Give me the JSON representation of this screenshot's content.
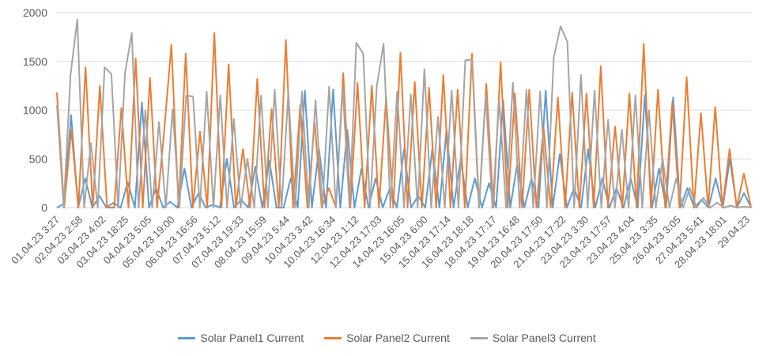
{
  "chart_data": {
    "type": "line",
    "title": "",
    "xlabel": "",
    "ylabel": "",
    "ylim": [
      0,
      2000
    ],
    "yticks": [
      "0",
      "500",
      "1000",
      "1500",
      "2000"
    ],
    "grid": "horizontal",
    "legend_position": "bottom",
    "x_tick_labels": [
      "01.04.23 3:27",
      "02.04.23 2:58",
      "03.04.23 4:02",
      "03.04.23 18:25",
      "04.04.23 5:05",
      "05.04.23 19:00",
      "06.04.23 16:56",
      "07.04.23 5:12",
      "07.04.23 19:33",
      "08.04.23 15:59",
      "09.04.23 5:44",
      "10.04.23 3:42",
      "10.04.23 16:34",
      "12.04.23 1:12",
      "12.04.23 17:03",
      "14.04.23 16:05",
      "15.04.23 6:00",
      "15.04.23 17:14",
      "16.04.23 18:18",
      "18.04.23 17:17",
      "19.04.23 16:48",
      "20.04.23 17:50",
      "21.04.23 17:22",
      "23.04.23 3:30",
      "23.04.23 17:57",
      "23.04.23 4:04",
      "25.04.23 3:35",
      "26.04.23 3:05",
      "27.04.23 5:41",
      "28.04.23 18:01",
      "29.04.23"
    ],
    "series": [
      {
        "name": "Solar Panel1 Current",
        "color": "#5b9bd5",
        "values": [
          0,
          40,
          950,
          0,
          300,
          0,
          120,
          0,
          50,
          0,
          260,
          0,
          1080,
          0,
          200,
          0,
          60,
          0,
          400,
          0,
          150,
          0,
          30,
          0,
          500,
          0,
          80,
          0,
          420,
          0,
          480,
          0,
          0,
          300,
          0,
          1200,
          0,
          600,
          0,
          1210,
          0,
          800,
          0,
          400,
          0,
          300,
          0,
          200,
          0,
          600,
          0,
          120,
          0,
          600,
          0,
          800,
          0,
          500,
          0,
          300,
          0,
          250,
          0,
          1100,
          0,
          450,
          0,
          300,
          0,
          1200,
          0,
          550,
          0,
          200,
          0,
          600,
          0,
          300,
          0,
          200,
          0,
          300,
          0,
          1150,
          0,
          400,
          0,
          1130,
          0,
          200,
          0,
          80,
          0,
          300,
          0,
          500,
          0,
          150,
          0
        ]
      },
      {
        "name": "Solar Panel2 Current",
        "color": "#ed7d31",
        "values": [
          1180,
          0,
          800,
          0,
          1440,
          0,
          1250,
          0,
          0,
          1020,
          0,
          1530,
          0,
          1330,
          0,
          800,
          1670,
          0,
          1580,
          0,
          780,
          0,
          1790,
          0,
          1470,
          0,
          600,
          0,
          1320,
          0,
          1010,
          0,
          1720,
          0,
          1050,
          0,
          870,
          0,
          200,
          0,
          1380,
          0,
          1280,
          0,
          1250,
          0,
          1130,
          0,
          1590,
          0,
          1290,
          0,
          1230,
          0,
          1360,
          0,
          1210,
          0,
          1580,
          0,
          1270,
          0,
          1490,
          0,
          1170,
          0,
          1210,
          0,
          820,
          0,
          1130,
          0,
          1180,
          0,
          1170,
          0,
          1450,
          0,
          830,
          0,
          1170,
          0,
          1680,
          0,
          1210,
          0,
          1080,
          0,
          1340,
          0,
          970,
          0,
          1030,
          0,
          600,
          0,
          350,
          0
        ]
      },
      {
        "name": "Solar Panel3 Current",
        "color": "#a5a5a5",
        "values": [
          1050,
          0,
          1360,
          1930,
          0,
          660,
          0,
          1440,
          1370,
          0,
          1380,
          1790,
          0,
          1000,
          0,
          880,
          0,
          1010,
          0,
          1150,
          1140,
          0,
          1190,
          0,
          1150,
          0,
          910,
          0,
          500,
          0,
          1150,
          0,
          1210,
          0,
          1180,
          0,
          1190,
          0,
          1100,
          0,
          1240,
          0,
          1230,
          0,
          1690,
          1580,
          0,
          1250,
          1680,
          0,
          1190,
          0,
          1160,
          0,
          1420,
          0,
          930,
          0,
          1200,
          0,
          1510,
          1520,
          0,
          1150,
          0,
          1100,
          0,
          1280,
          0,
          1210,
          0,
          1190,
          0,
          1540,
          1860,
          1700,
          0,
          1360,
          0,
          1200,
          0,
          900,
          0,
          800,
          0,
          1150,
          0,
          1000,
          0,
          500,
          0,
          300,
          0,
          200,
          0,
          100,
          0,
          50,
          0,
          20,
          0,
          10,
          0
        ]
      }
    ]
  }
}
